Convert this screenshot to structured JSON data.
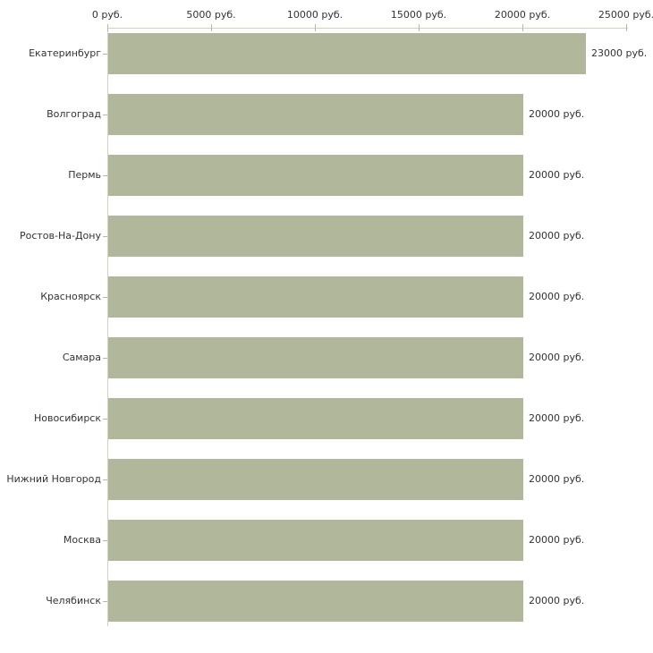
{
  "chart_data": {
    "type": "bar",
    "orientation": "horizontal",
    "title": "",
    "xlabel": "",
    "ylabel": "",
    "xlim": [
      0,
      25000
    ],
    "grid": false,
    "legend": false,
    "unit_suffix": " руб.",
    "categories": [
      "Екатеринбург",
      "Волгоград",
      "Пермь",
      "Ростов-На-Дону",
      "Красноярск",
      "Самара",
      "Новосибирск",
      "Нижний Новгород",
      "Москва",
      "Челябинск"
    ],
    "values": [
      23000,
      20000,
      20000,
      20000,
      20000,
      20000,
      20000,
      20000,
      20000,
      20000
    ],
    "value_labels": [
      "23000 руб.",
      "20000 руб.",
      "20000 руб.",
      "20000 руб.",
      "20000 руб.",
      "20000 руб.",
      "20000 руб.",
      "20000 руб.",
      "20000 руб.",
      "20000 руб."
    ],
    "x_ticks": [
      {
        "value": 0,
        "label": "0 руб."
      },
      {
        "value": 5000,
        "label": "5000 руб."
      },
      {
        "value": 10000,
        "label": "10000 руб."
      },
      {
        "value": 15000,
        "label": "15000 руб."
      },
      {
        "value": 20000,
        "label": "20000 руб."
      },
      {
        "value": 25000,
        "label": "25000 руб."
      }
    ],
    "colors": {
      "bar": "#b1b79a",
      "axis_line": "#d2d2c0",
      "tick_mark": "#b9b994",
      "text": "#333333",
      "background": "#ffffff"
    }
  },
  "layout_labels": {
    "chart_name": "salary-by-city-bar-chart"
  }
}
